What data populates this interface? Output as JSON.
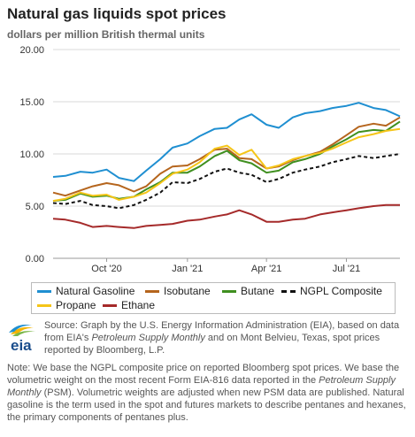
{
  "header": {
    "title": "Natural gas liquids spot prices",
    "subtitle": "dollars per million British thermal units"
  },
  "chart_data": {
    "type": "line",
    "title": "Natural gas liquids spot prices",
    "subtitle": "dollars per million British thermal units",
    "ylim": [
      0,
      20
    ],
    "y_ticks": [
      "0.00",
      "5.00",
      "10.00",
      "15.00",
      "20.00"
    ],
    "x_ticks": [
      "Oct '20",
      "Jan '21",
      "Apr '21",
      "Jul '21"
    ],
    "grid": "horizontal",
    "legend_position": "bottom",
    "x": [
      "2020-08-01",
      "2020-08-15",
      "2020-09-01",
      "2020-09-15",
      "2020-10-01",
      "2020-10-15",
      "2020-11-01",
      "2020-11-15",
      "2020-12-01",
      "2020-12-15",
      "2021-01-01",
      "2021-01-15",
      "2021-02-01",
      "2021-02-15",
      "2021-03-01",
      "2021-03-15",
      "2021-04-01",
      "2021-04-15",
      "2021-05-01",
      "2021-05-15",
      "2021-06-01",
      "2021-06-15",
      "2021-07-01",
      "2021-07-15",
      "2021-08-01",
      "2021-08-15",
      "2021-08-31"
    ],
    "series": [
      {
        "name": "Natural Gasoline",
        "color": "#1f8fd1",
        "dash": false,
        "values": [
          7.8,
          7.9,
          8.3,
          8.2,
          8.5,
          7.7,
          7.4,
          8.4,
          9.5,
          10.6,
          11.0,
          11.7,
          12.4,
          12.5,
          13.3,
          13.8,
          12.8,
          12.5,
          13.5,
          13.9,
          14.1,
          14.4,
          14.6,
          14.9,
          14.4,
          14.2,
          13.6
        ]
      },
      {
        "name": "Isobutane",
        "color": "#b5651d",
        "dash": false,
        "values": [
          6.3,
          6.0,
          6.5,
          6.9,
          7.2,
          7.0,
          6.4,
          6.9,
          8.1,
          8.8,
          8.9,
          9.5,
          10.4,
          10.5,
          9.6,
          9.5,
          8.6,
          8.8,
          9.4,
          9.8,
          10.2,
          10.9,
          11.8,
          12.6,
          12.9,
          12.7,
          13.5
        ]
      },
      {
        "name": "Butane",
        "color": "#3f8f1f",
        "dash": false,
        "values": [
          5.5,
          5.6,
          6.2,
          5.9,
          6.0,
          5.7,
          5.9,
          6.6,
          7.3,
          8.2,
          8.2,
          8.8,
          9.8,
          10.3,
          9.4,
          9.1,
          8.2,
          8.4,
          9.2,
          9.5,
          10.0,
          10.7,
          11.4,
          12.1,
          12.3,
          12.2,
          13.1
        ]
      },
      {
        "name": "NGPL Composite",
        "color": "#111111",
        "dash": true,
        "values": [
          5.3,
          5.2,
          5.5,
          5.1,
          5.0,
          4.8,
          5.1,
          5.6,
          6.3,
          7.3,
          7.2,
          7.6,
          8.3,
          8.6,
          8.2,
          8.0,
          7.3,
          7.6,
          8.2,
          8.5,
          8.8,
          9.2,
          9.5,
          9.8,
          9.6,
          9.8,
          10.0
        ]
      },
      {
        "name": "Propane",
        "color": "#f5c518",
        "dash": false,
        "values": [
          5.5,
          5.7,
          6.3,
          6.0,
          6.1,
          5.6,
          5.9,
          6.3,
          7.2,
          8.1,
          8.5,
          9.2,
          10.5,
          10.8,
          9.9,
          10.4,
          8.6,
          8.9,
          9.5,
          9.8,
          10.1,
          10.5,
          11.1,
          11.6,
          11.9,
          12.2,
          12.4
        ]
      },
      {
        "name": "Ethane",
        "color": "#a52a2a",
        "dash": false,
        "values": [
          3.8,
          3.7,
          3.4,
          3.0,
          3.1,
          3.0,
          2.9,
          3.1,
          3.2,
          3.3,
          3.6,
          3.7,
          4.0,
          4.2,
          4.6,
          4.2,
          3.5,
          3.5,
          3.7,
          3.8,
          4.2,
          4.4,
          4.6,
          4.8,
          5.0,
          5.1,
          5.1
        ]
      }
    ]
  },
  "legend": {
    "items": [
      "Natural Gasoline",
      "Isobutane",
      "Butane",
      "NGPL Composite",
      "Propane",
      "Ethane"
    ]
  },
  "logo": {
    "text": "eia"
  },
  "source": {
    "p1": "Source: Graph by the U.S. Energy Information Administration (EIA), based on data from EIA's ",
    "i1": "Petroleum Supply Monthly",
    "p2": " and on Mont Belvieu, Texas, spot prices reported by Bloomberg, L.P."
  },
  "note": {
    "p1": "Note: We base the NGPL composite price on reported Bloomberg spot prices. We base the volumetric weight on the most recent Form EIA-816 data reported in the ",
    "i1": "Petroleum Supply Monthly",
    "p2": " (PSM). Volumetric weights are adjusted when new PSM data are published. Natural gasoline is the term used in the spot and futures markets to describe pentanes and hexanes, the primary components of pentanes plus."
  }
}
